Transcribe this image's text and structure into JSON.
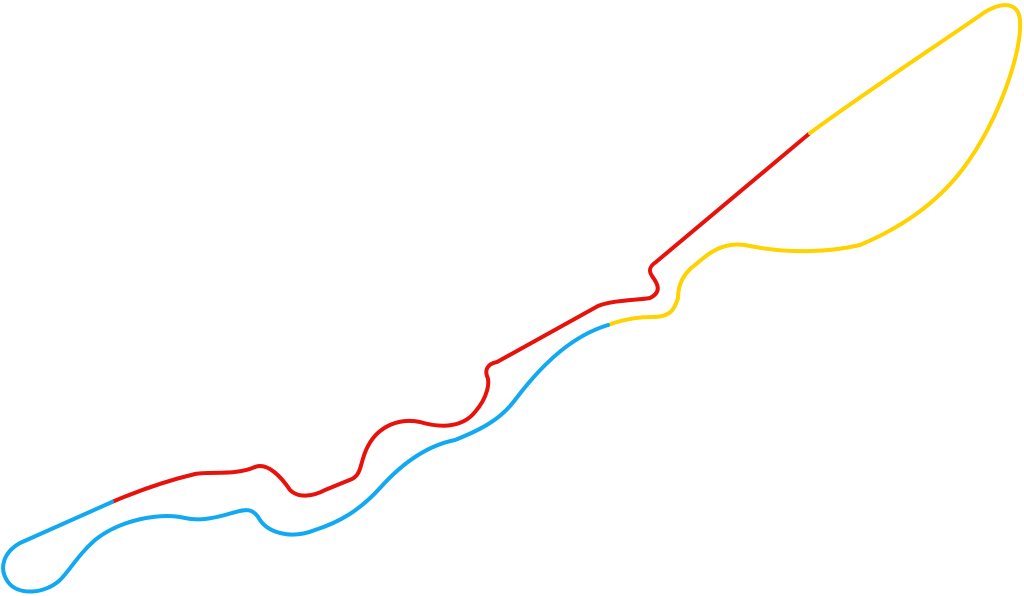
{
  "map": {
    "sectors": [
      {
        "id": "sector-1",
        "color": "#E8120C"
      },
      {
        "id": "sector-2",
        "color": "#FFD200"
      },
      {
        "id": "sector-3",
        "color": "#12A9F2"
      }
    ]
  }
}
